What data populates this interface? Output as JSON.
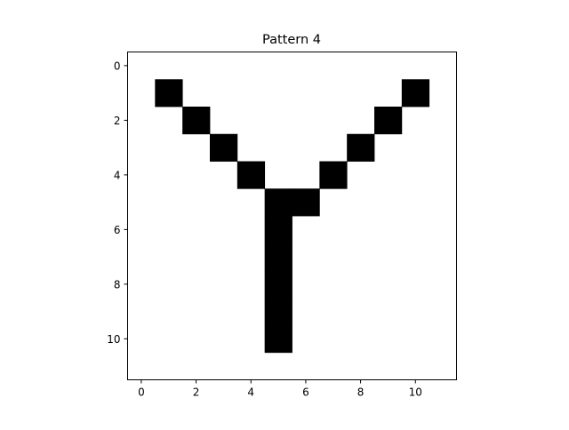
{
  "chart_data": {
    "type": "heatmap",
    "title": "Pattern 4",
    "xlabel": "",
    "ylabel": "",
    "xlim": [
      -0.5,
      11.5
    ],
    "ylim": [
      11.5,
      -0.5
    ],
    "y_inverted": true,
    "grid": false,
    "colormap": "binary",
    "cell_on_color": "#000000",
    "cell_off_color": "#ffffff",
    "x_ticks": [
      0,
      2,
      4,
      6,
      8,
      10
    ],
    "x_tick_labels": [
      "0",
      "2",
      "4",
      "6",
      "8",
      "10"
    ],
    "y_ticks": [
      0,
      2,
      4,
      6,
      8,
      10
    ],
    "y_tick_labels": [
      "0",
      "2",
      "4",
      "6",
      "8",
      "10"
    ],
    "matrix": [
      [
        0,
        0,
        0,
        0,
        0,
        0,
        0,
        0,
        0,
        0,
        0,
        0
      ],
      [
        0,
        1,
        0,
        0,
        0,
        0,
        0,
        0,
        0,
        0,
        1,
        0
      ],
      [
        0,
        0,
        1,
        0,
        0,
        0,
        0,
        0,
        0,
        1,
        0,
        0
      ],
      [
        0,
        0,
        0,
        1,
        0,
        0,
        0,
        0,
        1,
        0,
        0,
        0
      ],
      [
        0,
        0,
        0,
        0,
        1,
        0,
        0,
        1,
        0,
        0,
        0,
        0
      ],
      [
        0,
        0,
        0,
        0,
        0,
        1,
        1,
        0,
        0,
        0,
        0,
        0
      ],
      [
        0,
        0,
        0,
        0,
        0,
        1,
        0,
        0,
        0,
        0,
        0,
        0
      ],
      [
        0,
        0,
        0,
        0,
        0,
        1,
        0,
        0,
        0,
        0,
        0,
        0
      ],
      [
        0,
        0,
        0,
        0,
        0,
        1,
        0,
        0,
        0,
        0,
        0,
        0
      ],
      [
        0,
        0,
        0,
        0,
        0,
        1,
        0,
        0,
        0,
        0,
        0,
        0
      ],
      [
        0,
        0,
        0,
        0,
        0,
        1,
        0,
        0,
        0,
        0,
        0,
        0
      ],
      [
        0,
        0,
        0,
        0,
        0,
        0,
        0,
        0,
        0,
        0,
        0,
        0
      ]
    ]
  }
}
